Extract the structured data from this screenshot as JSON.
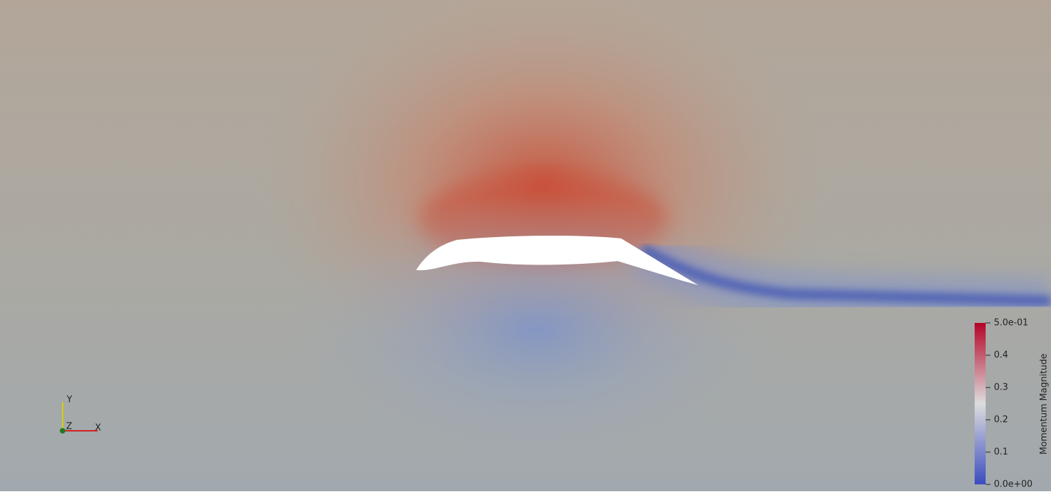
{
  "colorbar": {
    "title": "Momentum Magnitude",
    "range": [
      0,
      0.5
    ],
    "ticks": [
      {
        "value": 0.5,
        "label": "5.0e-01"
      },
      0.4,
      0.3,
      0.2,
      0.1,
      {
        "value": 0,
        "label": "0.0e+00"
      }
    ]
  },
  "axes_triad": {
    "y": "Y",
    "z": "Z",
    "x": "X"
  }
}
